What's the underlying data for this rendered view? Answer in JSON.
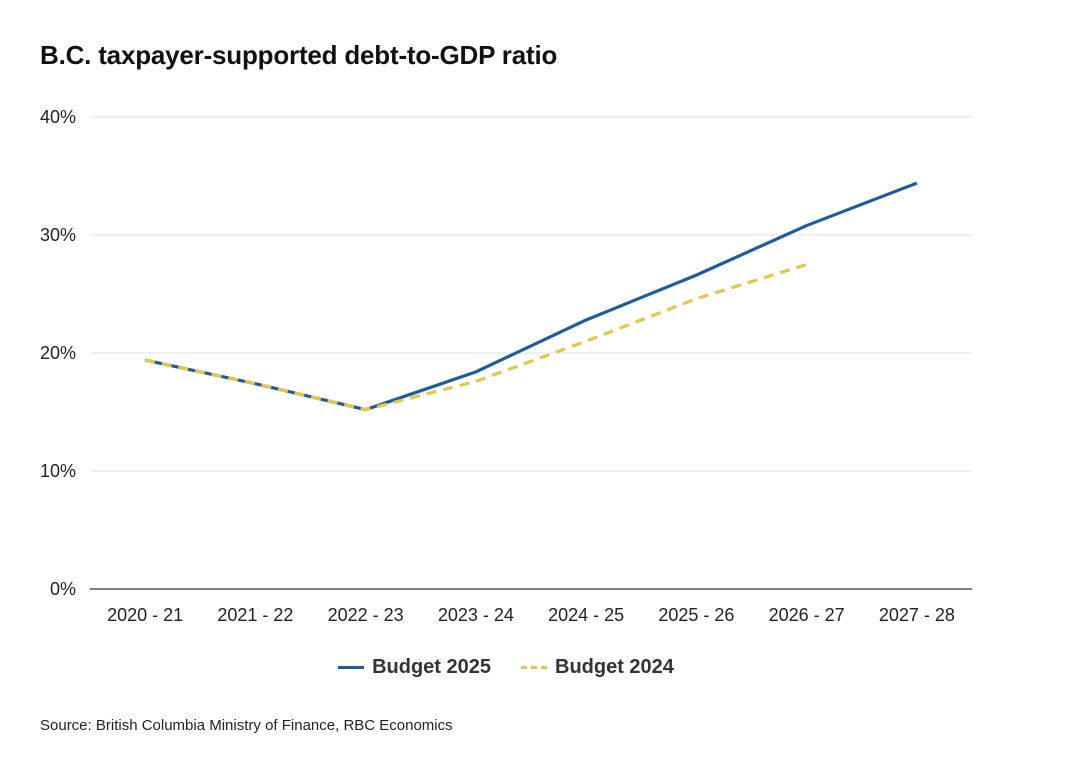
{
  "chart_data": {
    "type": "line",
    "title": "B.C. taxpayer-supported debt-to-GDP ratio",
    "xlabel": "",
    "ylabel": "",
    "ylim": [
      0,
      40
    ],
    "yticks": [
      0,
      10,
      20,
      30,
      40
    ],
    "ytick_labels": [
      "0%",
      "10%",
      "20%",
      "30%",
      "40%"
    ],
    "grid": true,
    "categories": [
      "2020 - 21",
      "2021 - 22",
      "2022 - 23",
      "2023 - 24",
      "2024 - 25",
      "2025 - 26",
      "2026 - 27",
      "2027 - 28"
    ],
    "series": [
      {
        "name": "Budget 2025",
        "color": "#1f5c99",
        "style": "solid",
        "values": [
          19.4,
          17.4,
          15.2,
          18.4,
          22.8,
          26.6,
          30.8,
          34.4
        ]
      },
      {
        "name": "Budget 2024",
        "color": "#e8c547",
        "style": "dashed",
        "values": [
          19.4,
          17.4,
          15.2,
          17.6,
          21.0,
          24.6,
          27.5,
          null
        ]
      }
    ],
    "legend_position": "bottom-center",
    "source": "Source: British Columbia Ministry of Finance, RBC Economics"
  }
}
